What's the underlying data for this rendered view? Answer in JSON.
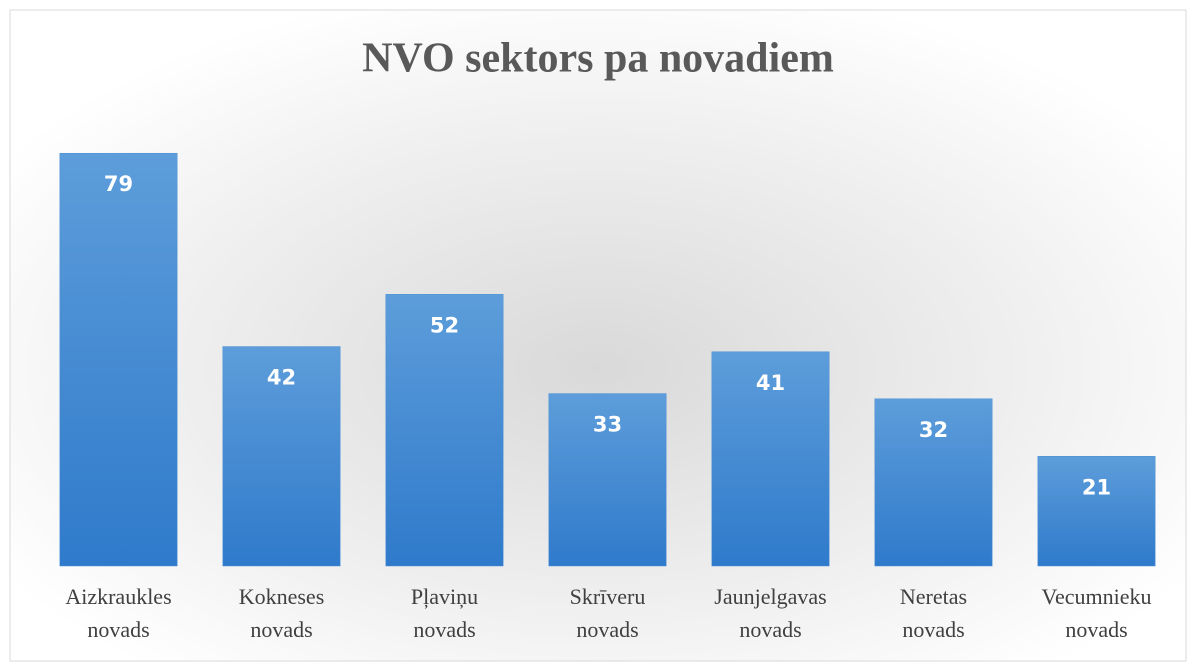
{
  "chart_data": {
    "type": "bar",
    "title": "NVO sektors pa novadiem",
    "categories": [
      "Aizkraukles novads",
      "Kokneses novads",
      "Pļaviņu novads",
      "Skrīveru novads",
      "Jaunjelgavas novads",
      "Neretas novads",
      "Vecumnieku novads"
    ],
    "values": [
      79,
      42,
      52,
      33,
      41,
      32,
      21
    ],
    "color": "#4a8fd6",
    "ylim": [
      0,
      80
    ]
  }
}
